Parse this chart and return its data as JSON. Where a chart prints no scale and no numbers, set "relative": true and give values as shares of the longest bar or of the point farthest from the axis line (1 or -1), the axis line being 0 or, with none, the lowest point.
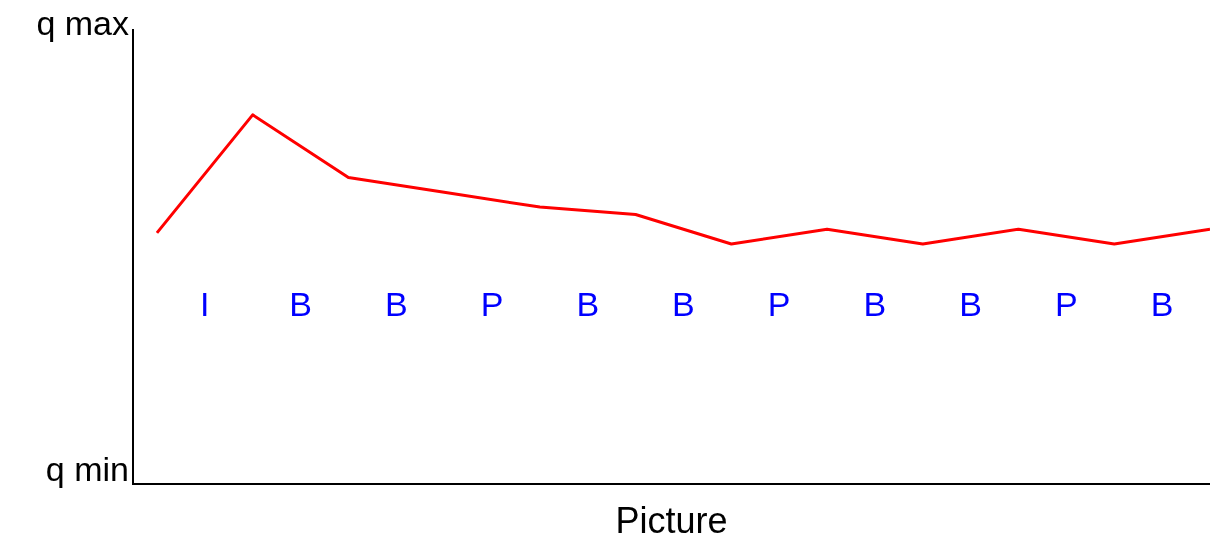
{
  "chart_data": {
    "type": "line",
    "xlabel": "Picture",
    "relative": true,
    "categories": [
      null,
      null,
      null,
      null,
      null,
      null,
      null,
      null,
      null,
      null,
      null,
      null
    ],
    "series": [
      {
        "color": "#ff0000",
        "values": [
          0.68,
          1,
          0.83,
          0.79,
          0.75,
          0.73,
          0.65,
          0.69,
          0.65,
          0.69,
          0.65,
          0.69
        ]
      }
    ],
    "legend": false,
    "marker": "none",
    "line_style": "solid",
    "annotations": [
      "q max",
      "q min",
      "I",
      "B",
      "B",
      "P",
      "B",
      "B",
      "P",
      "B",
      "B",
      "P",
      "B"
    ]
  }
}
